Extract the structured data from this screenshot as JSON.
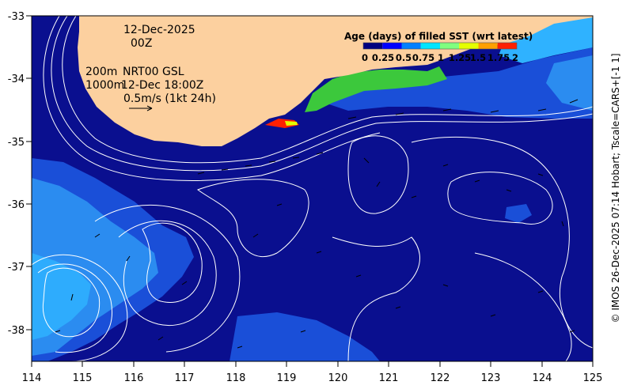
{
  "map": {
    "date": "12-Dec-2025",
    "time": "00Z",
    "depth_line_1": "200m",
    "depth_line_2": "1000m",
    "product_line_1": "NRT00 GSL",
    "product_line_2": "12-Dec 18:00Z",
    "vector_scale": "0.5m/s (1kt 24h)",
    "credit": "© IMOS 26-Dec-2025 07:14 Hobart; Tscale=CARS+[-1 1]"
  },
  "axes": {
    "x_ticks": [
      "114",
      "115",
      "116",
      "117",
      "118",
      "119",
      "120",
      "121",
      "122",
      "123",
      "124",
      "125"
    ],
    "y_ticks": [
      "-33",
      "-34",
      "-35",
      "-36",
      "-37",
      "-38"
    ]
  },
  "colorbar": {
    "title": "Age (days) of filled SST (wrt latest)",
    "ticks": [
      "0",
      "0.25",
      "0.5",
      "0.75",
      "1",
      "1.25",
      "1.5",
      "1.75",
      "2"
    ],
    "colors": [
      "#00007f",
      "#0000ff",
      "#007fff",
      "#00e5ff",
      "#7fff7f",
      "#e5ff00",
      "#ff9f00",
      "#ff2000",
      "#7f0000"
    ]
  },
  "colors": {
    "land": "#fcd09f",
    "ocean_deep": "#0a0f8f",
    "ocean_mid": "#1a4fd8",
    "ocean_light": "#2b8cf0",
    "ocean_cyan": "#2fb2ff",
    "coastal_green": "#3cc83c",
    "contour": "#ffffff"
  }
}
